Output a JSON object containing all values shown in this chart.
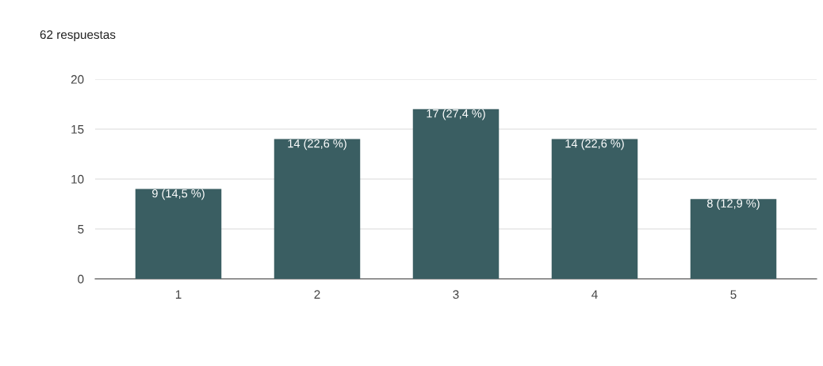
{
  "chart_data": {
    "type": "bar",
    "title": "62 respuestas",
    "categories": [
      "1",
      "2",
      "3",
      "4",
      "5"
    ],
    "values": [
      9,
      14,
      17,
      14,
      8
    ],
    "value_labels": [
      "9 (14,5 %)",
      "14 (22,6 %)",
      "17 (27,4 %)",
      "14 (22,6 %)",
      "8 (12,9 %)"
    ],
    "color": "#3a5e62",
    "ylim": [
      0,
      20
    ],
    "yticks": [
      0,
      5,
      10,
      15,
      20
    ],
    "grid": "y"
  }
}
